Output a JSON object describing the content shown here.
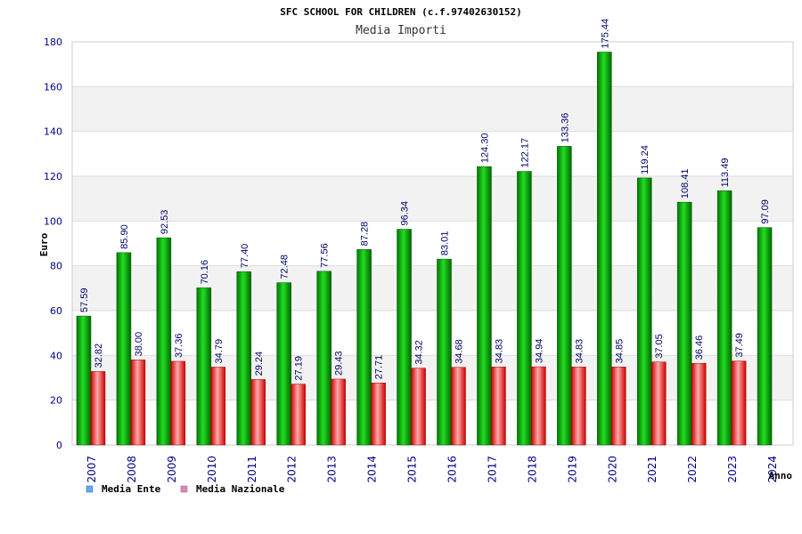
{
  "chart_data": {
    "type": "bar",
    "title": "SFC SCHOOL FOR CHILDREN (c.f.97402630152)",
    "subtitle": "Media Importi",
    "ylabel": "Euro",
    "xlabel": "Anno",
    "ylim": [
      0,
      180
    ],
    "yticks": [
      0,
      20,
      40,
      60,
      80,
      100,
      120,
      140,
      160,
      180
    ],
    "grid": true,
    "legend_position": "bottom-left",
    "categories": [
      "2007",
      "2008",
      "2009",
      "2010",
      "2011",
      "2012",
      "2013",
      "2014",
      "2015",
      "2016",
      "2017",
      "2018",
      "2019",
      "2020",
      "2021",
      "2022",
      "2023",
      "2024"
    ],
    "series": [
      {
        "name": "Media Ente",
        "color": "#00aa00",
        "legend_color": "#66aaee",
        "values": [
          57.59,
          85.9,
          92.53,
          70.16,
          77.4,
          72.48,
          77.56,
          87.28,
          96.34,
          83.01,
          124.3,
          122.17,
          133.36,
          175.44,
          119.24,
          108.41,
          113.49,
          97.09
        ],
        "labels": [
          "57.59",
          "85.90",
          "92.53",
          "70.16",
          "77.40",
          "72.48",
          "77.56",
          "87.28",
          "96.34",
          "83.01",
          "124.30",
          "122.17",
          "133.36",
          "175.44",
          "119.24",
          "108.41",
          "113.49",
          "97.09"
        ]
      },
      {
        "name": "Media Nazionale",
        "color": "#ee1111",
        "legend_color": "#dd88bb",
        "values": [
          32.82,
          38.0,
          37.36,
          34.79,
          29.24,
          27.19,
          29.43,
          27.71,
          34.32,
          34.68,
          34.83,
          34.94,
          34.83,
          34.85,
          37.05,
          36.46,
          37.49,
          null
        ],
        "labels": [
          "32.82",
          "38.00",
          "37.36",
          "34.79",
          "29.24",
          "27.19",
          "29.43",
          "27.71",
          "34.32",
          "34.68",
          "34.83",
          "34.94",
          "34.83",
          "34.85",
          "37.05",
          "36.46",
          "37.49",
          ""
        ]
      }
    ]
  }
}
